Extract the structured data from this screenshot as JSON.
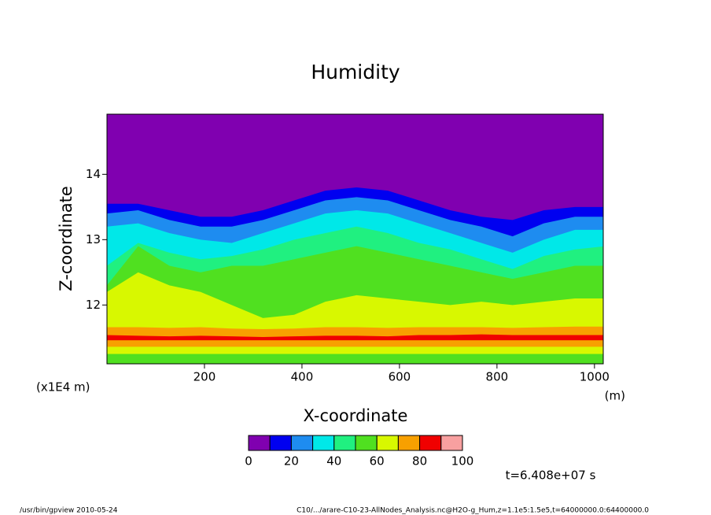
{
  "chart_data": {
    "type": "contour",
    "title": "Humidity",
    "xlabel": "X-coordinate",
    "ylabel": "Z-coordinate",
    "xunit": "(m)",
    "yunit": "(x1E4 m)",
    "xlim": [
      0,
      1018
    ],
    "ylim": [
      11.1,
      14.92
    ],
    "xticks": [
      200,
      400,
      600,
      800,
      1000
    ],
    "yticks": [
      12,
      13,
      14
    ],
    "x": [
      0,
      64,
      128,
      192,
      256,
      320,
      384,
      448,
      512,
      576,
      640,
      704,
      768,
      832,
      896,
      960,
      1024
    ],
    "layers": [
      {
        "level": 10,
        "values": [
          13.55,
          13.55,
          13.45,
          13.35,
          13.35,
          13.45,
          13.6,
          13.75,
          13.8,
          13.75,
          13.6,
          13.45,
          13.35,
          13.3,
          13.45,
          13.5,
          13.5
        ]
      },
      {
        "level": 20,
        "values": [
          13.4,
          13.45,
          13.3,
          13.2,
          13.2,
          13.3,
          13.45,
          13.6,
          13.65,
          13.6,
          13.45,
          13.3,
          13.2,
          13.05,
          13.25,
          13.35,
          13.35
        ]
      },
      {
        "level": 30,
        "values": [
          13.2,
          13.25,
          13.1,
          13.0,
          12.95,
          13.1,
          13.25,
          13.4,
          13.45,
          13.4,
          13.25,
          13.1,
          12.95,
          12.8,
          13.0,
          13.15,
          13.15
        ]
      },
      {
        "level": 40,
        "values": [
          12.6,
          12.95,
          12.8,
          12.7,
          12.75,
          12.85,
          13.0,
          13.1,
          13.2,
          13.1,
          12.95,
          12.85,
          12.7,
          12.55,
          12.75,
          12.85,
          12.9
        ]
      },
      {
        "level": 50,
        "values": [
          12.3,
          12.9,
          12.6,
          12.5,
          12.6,
          12.6,
          12.7,
          12.8,
          12.9,
          12.8,
          12.7,
          12.6,
          12.5,
          12.4,
          12.5,
          12.6,
          12.6
        ]
      },
      {
        "level": 60,
        "values": [
          12.2,
          12.5,
          12.3,
          12.2,
          12.0,
          11.8,
          11.85,
          12.05,
          12.15,
          12.1,
          12.05,
          12.0,
          12.05,
          12.0,
          12.05,
          12.1,
          12.1
        ]
      },
      {
        "level": 70,
        "values": [
          11.66,
          11.66,
          11.65,
          11.66,
          11.64,
          11.63,
          11.64,
          11.66,
          11.66,
          11.65,
          11.66,
          11.66,
          11.66,
          11.65,
          11.66,
          11.67,
          11.67
        ]
      },
      {
        "level": 80,
        "values": [
          11.54,
          11.53,
          11.52,
          11.53,
          11.52,
          11.51,
          11.52,
          11.53,
          11.53,
          11.52,
          11.54,
          11.54,
          11.55,
          11.54,
          11.54,
          11.54,
          11.54
        ]
      },
      {
        "level": 70,
        "values": [
          11.46,
          11.46,
          11.46,
          11.46,
          11.46,
          11.46,
          11.46,
          11.46,
          11.46,
          11.46,
          11.46,
          11.46,
          11.46,
          11.46,
          11.46,
          11.46,
          11.46
        ]
      },
      {
        "level": 60,
        "values": [
          11.36,
          11.36,
          11.36,
          11.36,
          11.36,
          11.36,
          11.36,
          11.36,
          11.36,
          11.36,
          11.36,
          11.36,
          11.36,
          11.36,
          11.36,
          11.36,
          11.36
        ]
      },
      {
        "level": 50,
        "values": [
          11.25,
          11.25,
          11.25,
          11.25,
          11.25,
          11.25,
          11.25,
          11.25,
          11.25,
          11.25,
          11.25,
          11.25,
          11.25,
          11.25,
          11.25,
          11.25,
          11.25
        ]
      }
    ],
    "colorbar": {
      "levels": [
        0,
        10,
        20,
        30,
        40,
        50,
        60,
        70,
        80,
        90,
        100
      ],
      "colors": [
        "#8000b0",
        "#0000f0",
        "#1e8cf0",
        "#00e8e8",
        "#20f080",
        "#50e020",
        "#d8f800",
        "#f8a000",
        "#f00000",
        "#f8a0a0"
      ],
      "ticks": [
        0,
        20,
        40,
        60,
        80,
        100
      ]
    },
    "time_label": "t=6.408e+07 s",
    "footer_left": "/usr/bin/gpview   2010-05-24",
    "footer_right": "C10/.../arare-C10-23-AllNodes_Analysis.nc@H2O-g_Hum,z=1.1e5:1.5e5,t=64000000.0:64400000.0"
  }
}
